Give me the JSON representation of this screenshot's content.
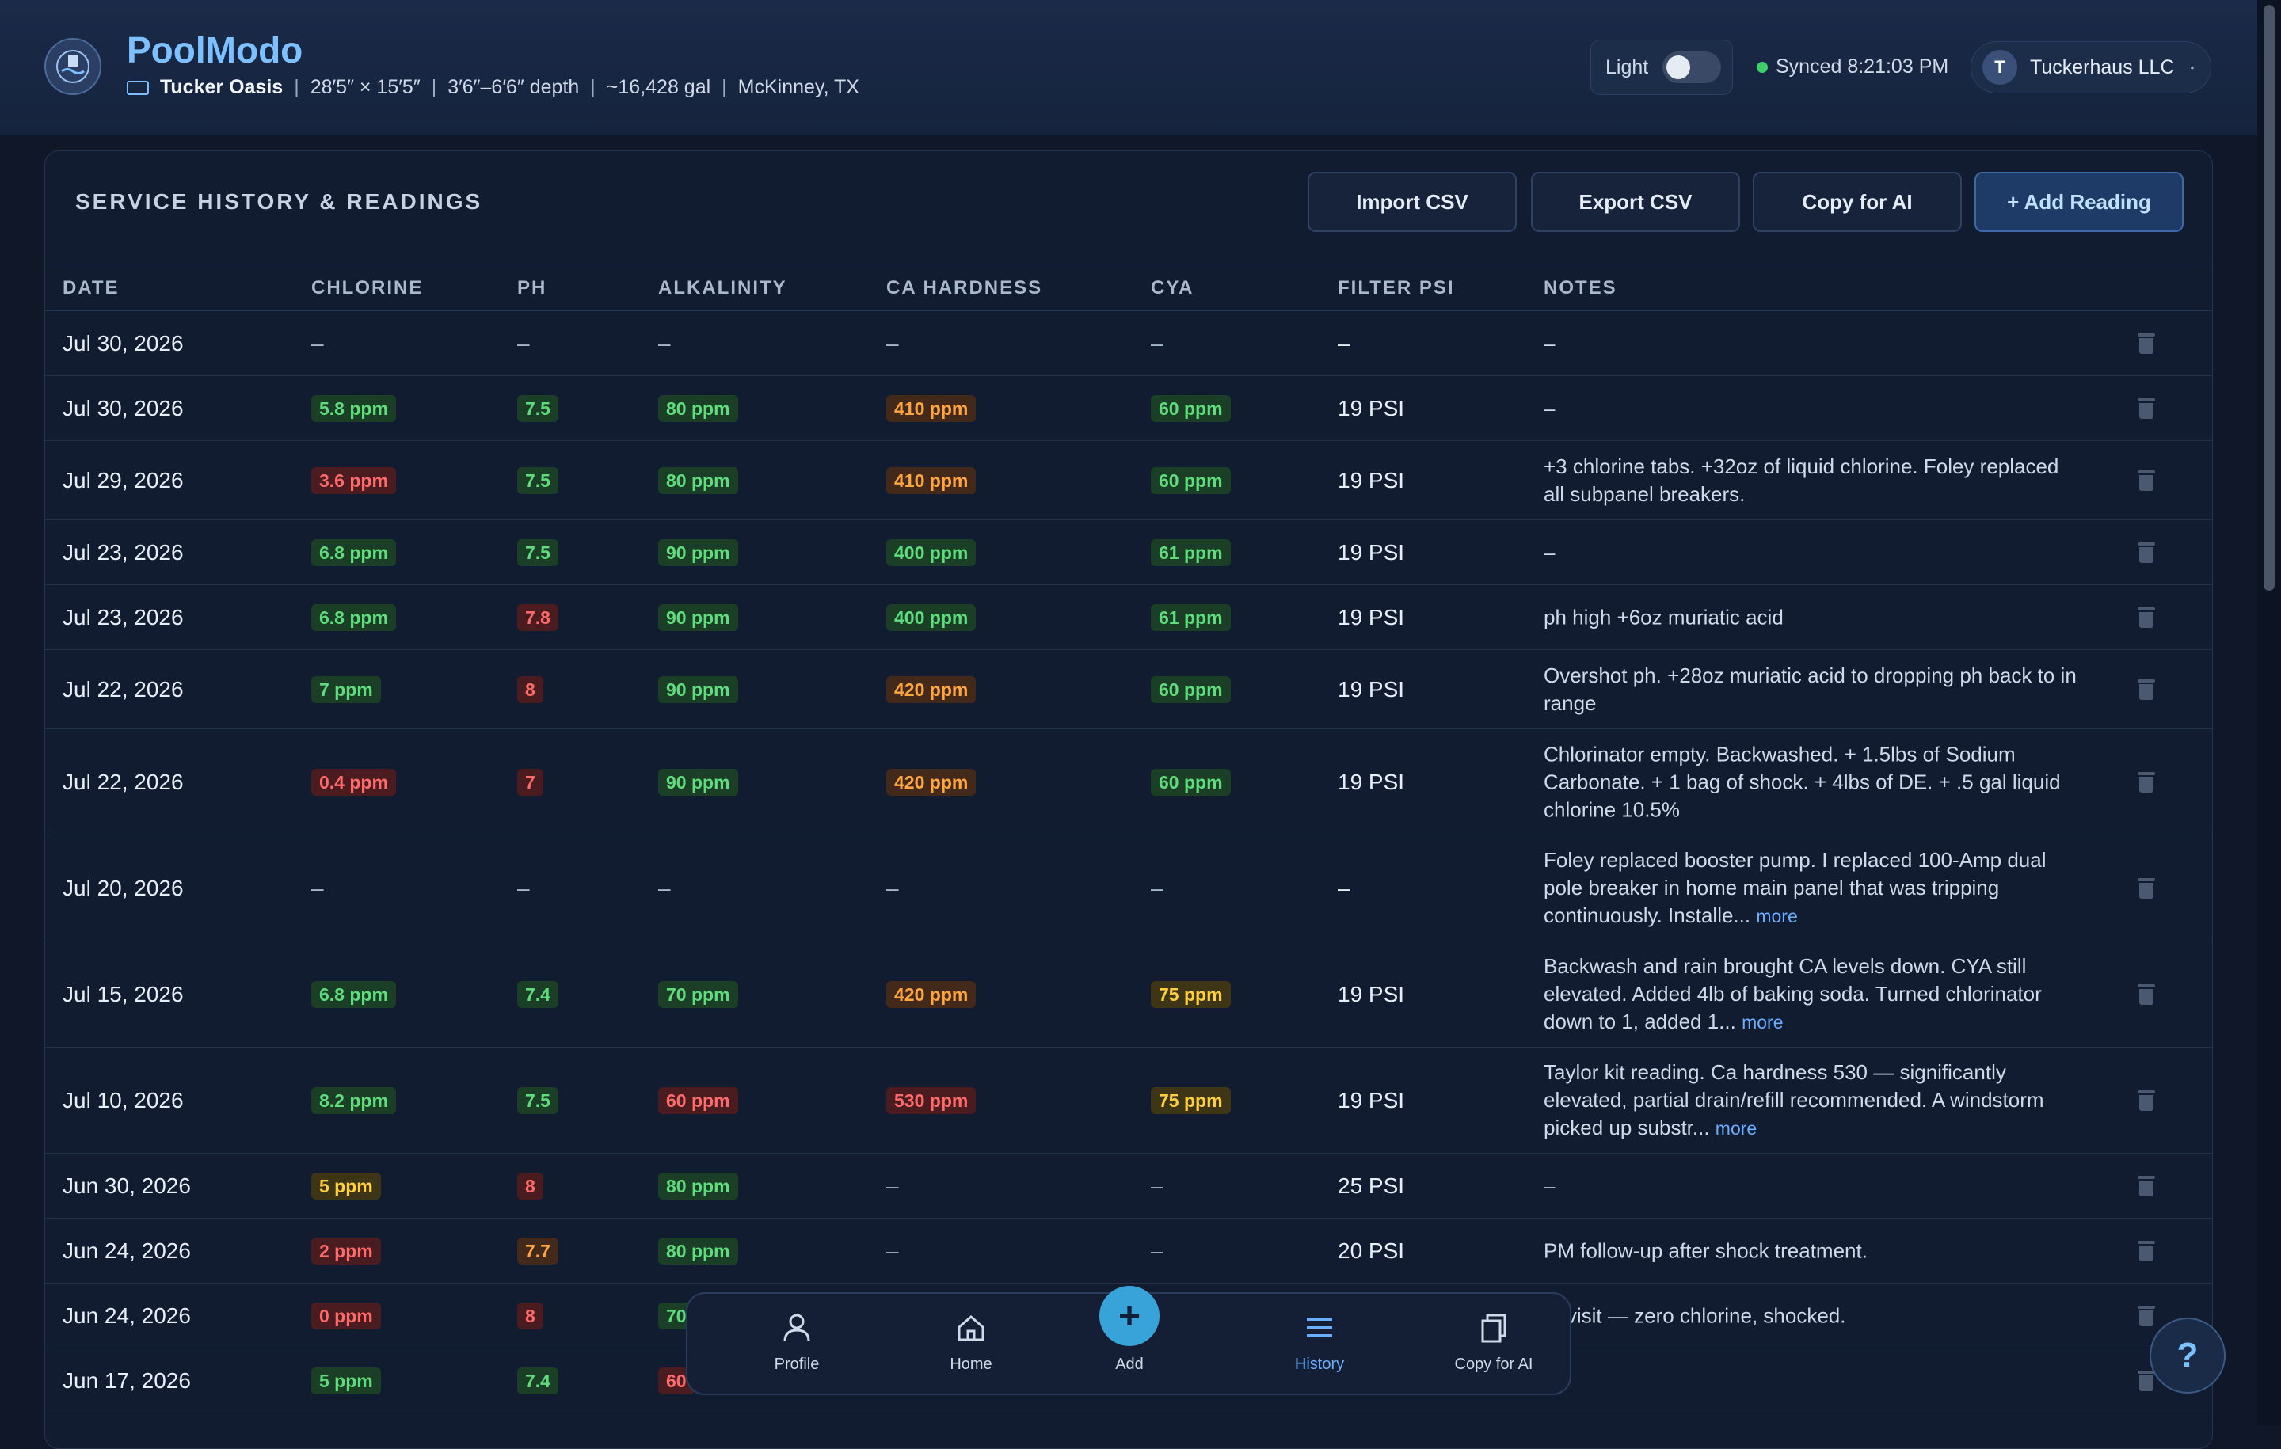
{
  "app": {
    "title": "PoolModo",
    "pool_name": "Tucker Oasis",
    "dimensions": "28′5″ × 15′5″",
    "depth": "3′6″–6′6″ depth",
    "volume": "~16,428 gal",
    "location": "McKinney, TX",
    "separator": "|"
  },
  "header": {
    "theme_label": "Light",
    "sync_status": "Synced 8:21:03 PM",
    "user_initial": "T",
    "user_name": "Tuckerhaus LLC",
    "colors": {
      "accent": "#7cc0ff",
      "sync_dot": "#3ccf6a"
    }
  },
  "panel": {
    "title": "SERVICE HISTORY & READINGS",
    "buttons": {
      "import": "Import CSV",
      "export": "Export CSV",
      "copy_ai": "Copy for AI",
      "add": "+ Add Reading"
    },
    "columns": [
      "DATE",
      "CHLORINE",
      "PH",
      "ALKALINITY",
      "CA HARDNESS",
      "CYA",
      "FILTER PSI",
      "NOTES"
    ]
  },
  "status_colors": {
    "good": "#5fdc7c",
    "bad": "#ff6b6b",
    "warn": "#ffa640",
    "caution": "#ffcf3d"
  },
  "rows": [
    {
      "date": "Jul 30, 2026",
      "chlorine": {
        "t": "–",
        "s": "none"
      },
      "ph": {
        "t": "–",
        "s": "none"
      },
      "alk": {
        "t": "–",
        "s": "none"
      },
      "ca": {
        "t": "–",
        "s": "none"
      },
      "cya": {
        "t": "–",
        "s": "none"
      },
      "psi": "–",
      "notes": "–",
      "more": ""
    },
    {
      "date": "Jul 30, 2026",
      "chlorine": {
        "t": "5.8 ppm",
        "s": "green"
      },
      "ph": {
        "t": "7.5",
        "s": "green"
      },
      "alk": {
        "t": "80 ppm",
        "s": "green"
      },
      "ca": {
        "t": "410 ppm",
        "s": "orange"
      },
      "cya": {
        "t": "60 ppm",
        "s": "green"
      },
      "psi": "19 PSI",
      "notes": "–",
      "more": ""
    },
    {
      "date": "Jul 29, 2026",
      "chlorine": {
        "t": "3.6 ppm",
        "s": "red"
      },
      "ph": {
        "t": "7.5",
        "s": "green"
      },
      "alk": {
        "t": "80 ppm",
        "s": "green"
      },
      "ca": {
        "t": "410 ppm",
        "s": "orange"
      },
      "cya": {
        "t": "60 ppm",
        "s": "green"
      },
      "psi": "19 PSI",
      "notes": "+3 chlorine tabs. +32oz of liquid chlorine. Foley replaced all subpanel breakers.",
      "more": ""
    },
    {
      "date": "Jul 23, 2026",
      "chlorine": {
        "t": "6.8 ppm",
        "s": "green"
      },
      "ph": {
        "t": "7.5",
        "s": "green"
      },
      "alk": {
        "t": "90 ppm",
        "s": "green"
      },
      "ca": {
        "t": "400 ppm",
        "s": "green"
      },
      "cya": {
        "t": "61 ppm",
        "s": "green"
      },
      "psi": "19 PSI",
      "notes": "–",
      "more": ""
    },
    {
      "date": "Jul 23, 2026",
      "chlorine": {
        "t": "6.8 ppm",
        "s": "green"
      },
      "ph": {
        "t": "7.8",
        "s": "red"
      },
      "alk": {
        "t": "90 ppm",
        "s": "green"
      },
      "ca": {
        "t": "400 ppm",
        "s": "green"
      },
      "cya": {
        "t": "61 ppm",
        "s": "green"
      },
      "psi": "19 PSI",
      "notes": "ph high +6oz muriatic acid",
      "more": ""
    },
    {
      "date": "Jul 22, 2026",
      "chlorine": {
        "t": "7 ppm",
        "s": "green"
      },
      "ph": {
        "t": "8",
        "s": "red"
      },
      "alk": {
        "t": "90 ppm",
        "s": "green"
      },
      "ca": {
        "t": "420 ppm",
        "s": "orange"
      },
      "cya": {
        "t": "60 ppm",
        "s": "green"
      },
      "psi": "19 PSI",
      "notes": "Overshot ph. +28oz muriatic acid to dropping ph back to in range",
      "more": ""
    },
    {
      "date": "Jul 22, 2026",
      "chlorine": {
        "t": "0.4 ppm",
        "s": "red"
      },
      "ph": {
        "t": "7",
        "s": "red"
      },
      "alk": {
        "t": "90 ppm",
        "s": "green"
      },
      "ca": {
        "t": "420 ppm",
        "s": "orange"
      },
      "cya": {
        "t": "60 ppm",
        "s": "green"
      },
      "psi": "19 PSI",
      "notes": "Chlorinator empty. Backwashed. + 1.5lbs of Sodium Carbonate. + 1 bag of shock. + 4lbs of DE. + .5 gal liquid chlorine 10.5%",
      "more": ""
    },
    {
      "date": "Jul 20, 2026",
      "chlorine": {
        "t": "–",
        "s": "none"
      },
      "ph": {
        "t": "–",
        "s": "none"
      },
      "alk": {
        "t": "–",
        "s": "none"
      },
      "ca": {
        "t": "–",
        "s": "none"
      },
      "cya": {
        "t": "–",
        "s": "none"
      },
      "psi": "–",
      "notes": "Foley replaced booster pump. I replaced 100-Amp dual pole breaker in home main panel that was tripping continuously. Installe...",
      "more": "more"
    },
    {
      "date": "Jul 15, 2026",
      "chlorine": {
        "t": "6.8 ppm",
        "s": "green"
      },
      "ph": {
        "t": "7.4",
        "s": "green"
      },
      "alk": {
        "t": "70 ppm",
        "s": "green"
      },
      "ca": {
        "t": "420 ppm",
        "s": "orange"
      },
      "cya": {
        "t": "75 ppm",
        "s": "yellow"
      },
      "psi": "19 PSI",
      "notes": "Backwash and rain brought CA levels down. CYA still elevated. Added 4lb of baking soda. Turned chlorinator down to 1, added 1...",
      "more": "more"
    },
    {
      "date": "Jul 10, 2026",
      "chlorine": {
        "t": "8.2 ppm",
        "s": "green"
      },
      "ph": {
        "t": "7.5",
        "s": "green"
      },
      "alk": {
        "t": "60 ppm",
        "s": "red"
      },
      "ca": {
        "t": "530 ppm",
        "s": "red"
      },
      "cya": {
        "t": "75 ppm",
        "s": "yellow"
      },
      "psi": "19 PSI",
      "notes": "Taylor kit reading. Ca hardness 530 — significantly elevated, partial drain/refill recommended. A windstorm picked up substr...",
      "more": "more"
    },
    {
      "date": "Jun 30, 2026",
      "chlorine": {
        "t": "5 ppm",
        "s": "yellow"
      },
      "ph": {
        "t": "8",
        "s": "red"
      },
      "alk": {
        "t": "80 ppm",
        "s": "green"
      },
      "ca": {
        "t": "–",
        "s": "none"
      },
      "cya": {
        "t": "–",
        "s": "none"
      },
      "psi": "25 PSI",
      "notes": "–",
      "more": ""
    },
    {
      "date": "Jun 24, 2026",
      "chlorine": {
        "t": "2 ppm",
        "s": "red"
      },
      "ph": {
        "t": "7.7",
        "s": "orange"
      },
      "alk": {
        "t": "80 ppm",
        "s": "green"
      },
      "ca": {
        "t": "–",
        "s": "none"
      },
      "cya": {
        "t": "–",
        "s": "none"
      },
      "psi": "20 PSI",
      "notes": "PM follow-up after shock treatment.",
      "more": ""
    },
    {
      "date": "Jun 24, 2026",
      "chlorine": {
        "t": "0 ppm",
        "s": "red"
      },
      "ph": {
        "t": "8",
        "s": "red"
      },
      "alk": {
        "t": "70",
        "s": "green"
      },
      "ca": {
        "t": "",
        "s": "none"
      },
      "cya": {
        "t": "",
        "s": "none"
      },
      "psi": "",
      "notes": "M visit — zero chlorine, shocked.",
      "more": ""
    },
    {
      "date": "Jun 17, 2026",
      "chlorine": {
        "t": "5 ppm",
        "s": "green"
      },
      "ph": {
        "t": "7.4",
        "s": "green"
      },
      "alk": {
        "t": "60",
        "s": "red"
      },
      "ca": {
        "t": "",
        "s": "none"
      },
      "cya": {
        "t": "",
        "s": "none"
      },
      "psi": "",
      "notes": "",
      "more": ""
    }
  ],
  "bottom_nav": {
    "items": [
      {
        "label": "Profile",
        "icon": "person-icon"
      },
      {
        "label": "Home",
        "icon": "home-icon"
      },
      {
        "label": "Add",
        "icon": "plus-icon"
      },
      {
        "label": "History",
        "icon": "list-icon",
        "active": true
      },
      {
        "label": "Copy for AI",
        "icon": "copy-icon"
      }
    ]
  },
  "help_label": "?"
}
